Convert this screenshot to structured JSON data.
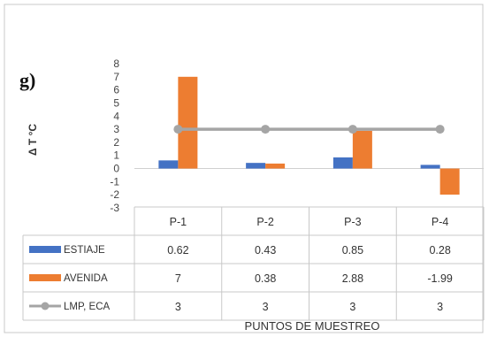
{
  "panel_label": "g)",
  "chart_data": {
    "type": "bar",
    "title": "",
    "xlabel": "PUNTOS DE MUESTREO",
    "ylabel": "Δ T °C",
    "ylim": [
      -3,
      8
    ],
    "yticks": [
      "8",
      "7",
      "6",
      "5",
      "4",
      "3",
      "2",
      "1",
      "0",
      "-1",
      "-2",
      "-3"
    ],
    "categories": [
      "P-1",
      "P-2",
      "P-3",
      "P-4"
    ],
    "series": [
      {
        "name": "ESTIAJE",
        "type": "bar",
        "color": "#4472C4",
        "values": [
          0.62,
          0.43,
          0.85,
          0.28
        ],
        "labels": [
          "0.62",
          "0.43",
          "0.85",
          "0.28"
        ]
      },
      {
        "name": "AVENIDA",
        "type": "bar",
        "color": "#ED7D31",
        "values": [
          7,
          0.38,
          2.88,
          -1.99
        ],
        "labels": [
          "7",
          "0.38",
          "2.88",
          "-1.99"
        ]
      },
      {
        "name": "LMP, ECA",
        "type": "line",
        "color": "#A5A5A5",
        "values": [
          3,
          3,
          3,
          3
        ],
        "labels": [
          "3",
          "3",
          "3",
          "3"
        ]
      }
    ],
    "legend_placement": "data-table",
    "grid": false
  }
}
